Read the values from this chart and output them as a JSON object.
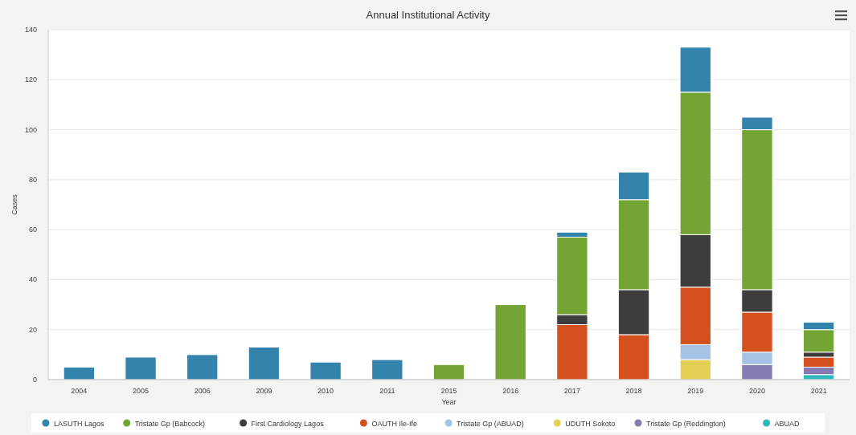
{
  "chart_data": {
    "type": "bar",
    "title": "Annual Institutional Activity",
    "xlabel": "Year",
    "ylabel": "Cases",
    "categories": [
      "2004",
      "2005",
      "2006",
      "2009",
      "2010",
      "2011",
      "2015",
      "2016",
      "2017",
      "2018",
      "2019",
      "2020",
      "2021"
    ],
    "stacked": true,
    "ylim": [
      0,
      140
    ],
    "yticks": [
      0,
      20,
      40,
      60,
      80,
      100,
      120,
      140
    ],
    "grid": "y",
    "legend": "bottom",
    "series": [
      {
        "name": "ABUAD",
        "color": "#2fb8b8",
        "values": [
          null,
          null,
          null,
          null,
          null,
          null,
          null,
          null,
          null,
          null,
          null,
          null,
          2
        ]
      },
      {
        "name": "Tristate Gp (Reddington)",
        "color": "#877ab3",
        "values": [
          null,
          null,
          null,
          null,
          null,
          null,
          null,
          null,
          null,
          null,
          null,
          6,
          3
        ]
      },
      {
        "name": "UDUTH Sokoto",
        "color": "#e3d055",
        "values": [
          null,
          null,
          null,
          null,
          null,
          null,
          null,
          null,
          null,
          null,
          8,
          null,
          null
        ]
      },
      {
        "name": "Tristate Gp (ABUAD)",
        "color": "#a6c3e6",
        "values": [
          null,
          null,
          null,
          null,
          null,
          null,
          null,
          null,
          null,
          null,
          6,
          5,
          null
        ]
      },
      {
        "name": "OAUTH Ile-Ife",
        "color": "#d4501f",
        "values": [
          null,
          null,
          null,
          null,
          null,
          null,
          null,
          null,
          22,
          18,
          23,
          16,
          4
        ]
      },
      {
        "name": "First Cardiology Lagos",
        "color": "#3d3d3d",
        "values": [
          null,
          null,
          null,
          null,
          null,
          null,
          null,
          null,
          4,
          18,
          21,
          9,
          2
        ]
      },
      {
        "name": "Tristate Gp (Babcock)",
        "color": "#74a433",
        "values": [
          null,
          null,
          null,
          null,
          null,
          null,
          6,
          30,
          31,
          36,
          57,
          64,
          9
        ]
      },
      {
        "name": "LASUTH Lagos",
        "color": "#3483ad",
        "values": [
          5,
          9,
          10,
          13,
          7,
          8,
          null,
          null,
          2,
          11,
          18,
          5,
          3
        ]
      }
    ]
  }
}
